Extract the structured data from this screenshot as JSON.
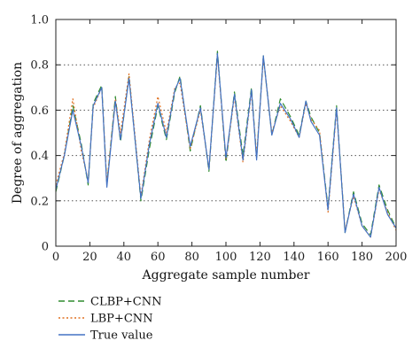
{
  "chart_data": {
    "type": "line",
    "xlabel": "Aggregate sample number",
    "ylabel": "Degree of aggregation",
    "xlim": [
      0,
      200
    ],
    "ylim": [
      0,
      1.0
    ],
    "xticks": [
      "0",
      "20",
      "40",
      "60",
      "80",
      "100",
      "120",
      "140",
      "160",
      "180",
      "200"
    ],
    "yticks": [
      "0",
      "0.2",
      "0.4",
      "0.6",
      "0.8",
      "1.0"
    ],
    "grid": "horizontal dotted at 0.2, 0.4, 0.6, 0.8",
    "legend_position": "below plot",
    "x": [
      0,
      5,
      10,
      15,
      19,
      22,
      27,
      30,
      35,
      38,
      43,
      50,
      55,
      60,
      65,
      70,
      73,
      79,
      85,
      90,
      95,
      100,
      105,
      110,
      115,
      118,
      122,
      127,
      132,
      138,
      143,
      147,
      150,
      155,
      160,
      165,
      170,
      175,
      180,
      185,
      190,
      195,
      200
    ],
    "series": [
      {
        "name": "CLBP+CNN",
        "color": "#2e8b2e",
        "style": "dashed",
        "values": [
          0.24,
          0.4,
          0.62,
          0.45,
          0.27,
          0.63,
          0.71,
          0.27,
          0.66,
          0.46,
          0.75,
          0.2,
          0.43,
          0.62,
          0.47,
          0.68,
          0.75,
          0.42,
          0.62,
          0.33,
          0.86,
          0.37,
          0.68,
          0.4,
          0.7,
          0.39,
          0.84,
          0.49,
          0.65,
          0.57,
          0.49,
          0.64,
          0.57,
          0.5,
          0.17,
          0.62,
          0.06,
          0.24,
          0.1,
          0.05,
          0.27,
          0.16,
          0.08
        ]
      },
      {
        "name": "LBP+CNN",
        "color": "#e07020",
        "style": "dotted",
        "values": [
          0.27,
          0.41,
          0.65,
          0.42,
          0.29,
          0.61,
          0.7,
          0.28,
          0.65,
          0.5,
          0.76,
          0.22,
          0.47,
          0.66,
          0.5,
          0.7,
          0.72,
          0.43,
          0.6,
          0.34,
          0.84,
          0.38,
          0.66,
          0.37,
          0.68,
          0.4,
          0.83,
          0.5,
          0.62,
          0.55,
          0.48,
          0.63,
          0.56,
          0.51,
          0.15,
          0.6,
          0.07,
          0.22,
          0.09,
          0.04,
          0.25,
          0.15,
          0.07
        ]
      },
      {
        "name": "True value",
        "color": "#4472c4",
        "style": "solid",
        "values": [
          0.25,
          0.4,
          0.6,
          0.44,
          0.28,
          0.62,
          0.7,
          0.26,
          0.64,
          0.47,
          0.74,
          0.21,
          0.45,
          0.63,
          0.48,
          0.69,
          0.74,
          0.44,
          0.61,
          0.34,
          0.85,
          0.39,
          0.67,
          0.38,
          0.69,
          0.38,
          0.84,
          0.49,
          0.63,
          0.56,
          0.48,
          0.64,
          0.55,
          0.49,
          0.16,
          0.61,
          0.06,
          0.23,
          0.09,
          0.04,
          0.26,
          0.14,
          0.08
        ]
      }
    ]
  }
}
